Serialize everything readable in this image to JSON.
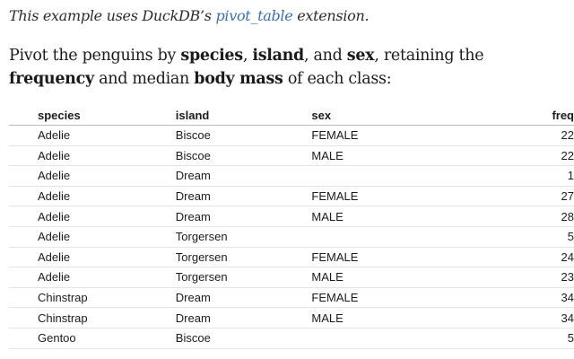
{
  "note": {
    "prefix": "This example uses DuckDB’s ",
    "link_text": "pivot_table",
    "suffix": " extension."
  },
  "paragraph": {
    "t1": "Pivot the penguins by ",
    "b1": "species",
    "t2": ", ",
    "b2": "island",
    "t3": ", and ",
    "b3": "sex",
    "t4": ", retaining the ",
    "b4": "frequency",
    "t5": " and median ",
    "b5": "body mass",
    "t6": " of each class:"
  },
  "table": {
    "headers": [
      "species",
      "island",
      "sex",
      "freq"
    ],
    "rows": [
      [
        "Adelie",
        "Biscoe",
        "FEMALE",
        "22"
      ],
      [
        "Adelie",
        "Biscoe",
        "MALE",
        "22"
      ],
      [
        "Adelie",
        "Dream",
        "",
        "1"
      ],
      [
        "Adelie",
        "Dream",
        "FEMALE",
        "27"
      ],
      [
        "Adelie",
        "Dream",
        "MALE",
        "28"
      ],
      [
        "Adelie",
        "Torgersen",
        "",
        "5"
      ],
      [
        "Adelie",
        "Torgersen",
        "FEMALE",
        "24"
      ],
      [
        "Adelie",
        "Torgersen",
        "MALE",
        "23"
      ],
      [
        "Chinstrap",
        "Dream",
        "FEMALE",
        "34"
      ],
      [
        "Chinstrap",
        "Dream",
        "MALE",
        "34"
      ],
      [
        "Gentoo",
        "Biscoe",
        "",
        "5"
      ]
    ]
  }
}
